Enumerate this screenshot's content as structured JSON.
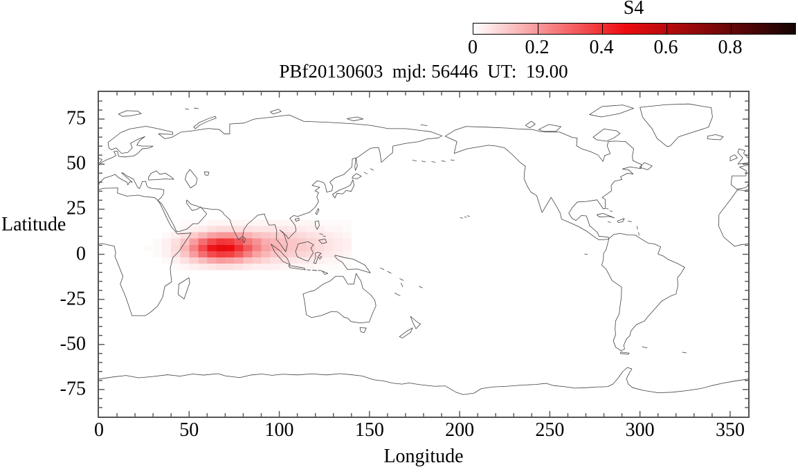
{
  "figure": {
    "title": "PBf20130603  mjd: 56446  UT:  19.00",
    "colorbar": {
      "label": "S4",
      "tick_labels": [
        "0",
        "0.2",
        "0.4",
        "0.6",
        "0.8"
      ],
      "tick_values": [
        0,
        0.2,
        0.4,
        0.6,
        0.8
      ],
      "range": [
        0,
        1
      ],
      "colors": {
        "low": "#ffffff",
        "mid": "#ee0c10",
        "high": "#140404",
        "mid_pos": 0.47
      }
    },
    "xaxis": {
      "label": "Longitude",
      "tick_labels": [
        "0",
        "50",
        "100",
        "150",
        "200",
        "250",
        "300",
        "350"
      ],
      "tick_values": [
        0,
        50,
        100,
        150,
        200,
        250,
        300,
        350
      ],
      "minor_step": 10,
      "range": [
        0,
        360
      ]
    },
    "yaxis": {
      "label": "Latitude",
      "tick_labels": [
        "75",
        "50",
        "25",
        "0",
        "-25",
        "-50",
        "-75"
      ],
      "tick_values": [
        75,
        50,
        25,
        0,
        -25,
        -50,
        -75
      ],
      "minor_step": 5,
      "range": [
        -90,
        90
      ]
    }
  },
  "chart_data": {
    "type": "heatmap",
    "title": "PBf20130603  mjd: 56446  UT:  19.00",
    "xlabel": "Longitude",
    "ylabel": "Latitude",
    "xlim": [
      0,
      360
    ],
    "ylim": [
      -90,
      90
    ],
    "grid_on": false,
    "colorbar_label": "S4",
    "colorbar_range": [
      0,
      1
    ],
    "peak": {
      "lon": 67.5,
      "lat": 3.5,
      "s4": 0.49
    },
    "grid": {
      "lon_left": 25,
      "dlon": 5,
      "lat_top": 19.25,
      "dlat": 3.5,
      "n_cols": 23,
      "n_rows": 8
    },
    "values": [
      [
        0,
        0,
        0,
        0,
        0.01,
        0.01,
        0.01,
        0.02,
        0.02,
        0.02,
        0.02,
        0.02,
        0.02,
        0.02,
        0.02,
        0.02,
        0.02,
        0.02,
        0.02,
        0.01,
        0.01,
        0.01,
        0.01
      ],
      [
        0,
        0,
        0,
        0.01,
        0.02,
        0.03,
        0.04,
        0.06,
        0.07,
        0.07,
        0.06,
        0.06,
        0.05,
        0.05,
        0.05,
        0.05,
        0.04,
        0.04,
        0.03,
        0.03,
        0.02,
        0.02,
        0.01
      ],
      [
        0,
        0,
        0.01,
        0.03,
        0.06,
        0.1,
        0.14,
        0.18,
        0.2,
        0.2,
        0.18,
        0.15,
        0.12,
        0.11,
        0.1,
        0.09,
        0.08,
        0.07,
        0.06,
        0.05,
        0.04,
        0.03,
        0.02
      ],
      [
        0,
        0.01,
        0.03,
        0.06,
        0.11,
        0.19,
        0.28,
        0.35,
        0.39,
        0.38,
        0.33,
        0.26,
        0.21,
        0.16,
        0.14,
        0.12,
        0.11,
        0.1,
        0.08,
        0.07,
        0.05,
        0.04,
        0.03
      ],
      [
        0.01,
        0.01,
        0.03,
        0.07,
        0.14,
        0.24,
        0.35,
        0.45,
        0.49,
        0.47,
        0.4,
        0.32,
        0.24,
        0.18,
        0.15,
        0.13,
        0.11,
        0.1,
        0.09,
        0.07,
        0.05,
        0.04,
        0.03
      ],
      [
        0,
        0.01,
        0.03,
        0.06,
        0.11,
        0.19,
        0.28,
        0.35,
        0.38,
        0.37,
        0.32,
        0.25,
        0.18,
        0.14,
        0.11,
        0.1,
        0.09,
        0.08,
        0.07,
        0.05,
        0.04,
        0.03,
        0.02
      ],
      [
        0,
        0,
        0.01,
        0.03,
        0.06,
        0.09,
        0.13,
        0.17,
        0.19,
        0.18,
        0.16,
        0.12,
        0.1,
        0.08,
        0.06,
        0.06,
        0.05,
        0.04,
        0.04,
        0.03,
        0.02,
        0.02,
        0.01
      ],
      [
        0,
        0,
        0,
        0.01,
        0.02,
        0.03,
        0.04,
        0.05,
        0.06,
        0.06,
        0.05,
        0.04,
        0.03,
        0.03,
        0.03,
        0.02,
        0.02,
        0.02,
        0.02,
        0.01,
        0.01,
        0.01,
        0.01
      ]
    ]
  }
}
